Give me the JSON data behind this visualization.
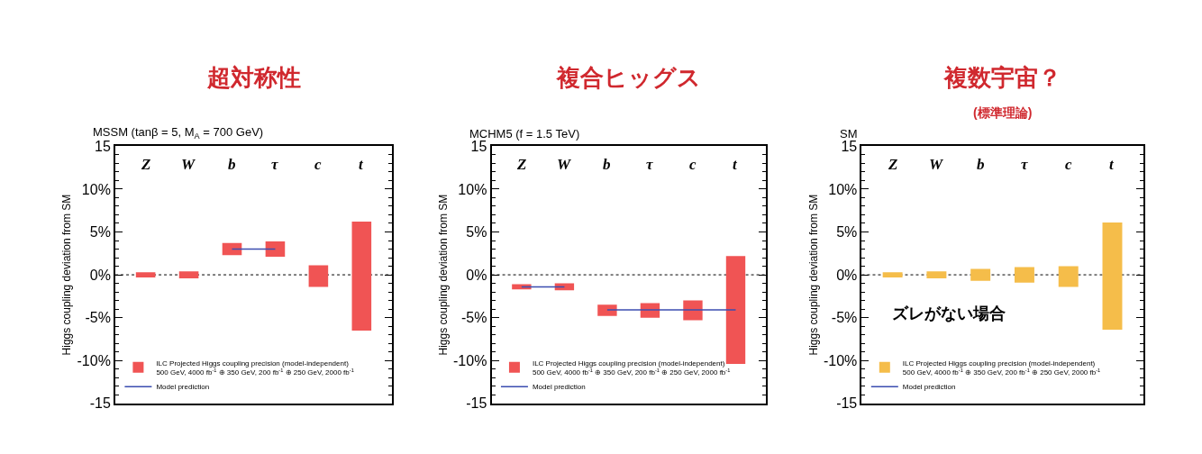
{
  "chart_data": [
    {
      "type": "bar",
      "title": "超対称性",
      "subtitle": "MSSM (tanβ = 5, M$_{A}$ = 700 GeV)",
      "ylabel": "Higgs coupling deviation from SM",
      "categories": [
        "Z",
        "W",
        "b",
        "τ",
        "c",
        "t"
      ],
      "series": [
        {
          "name": "ILC Projected Higgs coupling precision (model-independent)\n500 GeV, 4000 fb$^{-1}$ ⊕ 350 GeV, 200 fb$^{-1}$ ⊕ 250 GeV, 2000 fb$^{-1}$",
          "color": "#f05454",
          "base": [
            -0.3,
            -0.4,
            2.3,
            2.1,
            -1.4,
            -6.5
          ],
          "values": [
            0.6,
            0.8,
            1.4,
            1.8,
            2.5,
            12.7
          ]
        },
        {
          "type": "line",
          "name": "Model prediction",
          "color": "#3b4db0",
          "values": [
            null,
            null,
            3.0,
            3.0,
            null,
            null
          ]
        }
      ],
      "ylim": [
        -15,
        15
      ],
      "yticks": [
        15,
        {
          "value": 10,
          "label": "10%"
        },
        {
          "value": 5,
          "label": "5%"
        },
        {
          "value": 0,
          "label": "0%"
        },
        {
          "value": -5,
          "label": "-5%"
        },
        {
          "value": -10,
          "label": "-10%"
        },
        -15
      ],
      "ref_lines": [
        {
          "axis": "y",
          "value": 0,
          "color": "#000000",
          "line_style": "dotted"
        }
      ],
      "legend": "bottom left",
      "grid": false
    },
    {
      "type": "bar",
      "title": "複合ヒッグス",
      "subtitle": "MCHM5 (f = 1.5 TeV)",
      "ylabel": "Higgs coupling deviation from SM",
      "categories": [
        "Z",
        "W",
        "b",
        "τ",
        "c",
        "t"
      ],
      "series": [
        {
          "name": "ILC Projected Higgs coupling precision (model-independent)\n500 GeV, 4000 fb$^{-1}$ ⊕ 350 GeV, 200 fb$^{-1}$ ⊕ 250 GeV, 2000 fb$^{-1}$",
          "color": "#f05454",
          "base": [
            -1.7,
            -1.8,
            -4.8,
            -5.0,
            -5.3,
            -10.4
          ],
          "values": [
            0.6,
            0.8,
            1.3,
            1.7,
            2.3,
            12.6
          ]
        },
        {
          "type": "line",
          "name": "Model prediction",
          "color": "#3b4db0",
          "values": [
            -1.4,
            -1.4,
            null,
            null,
            null,
            null
          ]
        },
        {
          "type": "line",
          "color": "#3b4db0",
          "values": [
            null,
            null,
            -4.1,
            -4.1,
            -4.1,
            -4.1
          ]
        }
      ],
      "ylim": [
        -15,
        15
      ],
      "yticks": [
        15,
        {
          "value": 10,
          "label": "10%"
        },
        {
          "value": 5,
          "label": "5%"
        },
        {
          "value": 0,
          "label": "0%"
        },
        {
          "value": -5,
          "label": "-5%"
        },
        {
          "value": -10,
          "label": "-10%"
        },
        -15
      ],
      "ref_lines": [
        {
          "axis": "y",
          "value": 0,
          "color": "#000000",
          "line_style": "dotted"
        }
      ],
      "legend": "bottom left",
      "grid": false
    },
    {
      "type": "bar",
      "title": "複数宇宙？\n(標準理論)",
      "subtitle": "SM",
      "ylabel": "Higgs coupling deviation from SM",
      "annotations": [
        "ズレがない場合"
      ],
      "categories": [
        "Z",
        "W",
        "b",
        "τ",
        "c",
        "t"
      ],
      "series": [
        {
          "name": "ILC Projected Higgs coupling precision (model-independent)\n500 GeV, 4000 fb$^{-1}$ ⊕ 350 GeV, 200 fb$^{-1}$ ⊕ 250 GeV, 2000 fb$^{-1}$",
          "color": "#f5bd4a",
          "base": [
            -0.3,
            -0.4,
            -0.7,
            -0.9,
            -1.4,
            -6.4
          ],
          "values": [
            0.6,
            0.8,
            1.4,
            1.8,
            2.4,
            12.5
          ]
        },
        {
          "type": "line",
          "name": "Model prediction",
          "color": "#3b4db0",
          "values": [
            null,
            null,
            null,
            null,
            null,
            null
          ]
        }
      ],
      "ylim": [
        -15,
        15
      ],
      "yticks": [
        15,
        {
          "value": 10,
          "label": "10%"
        },
        {
          "value": 5,
          "label": "5%"
        },
        {
          "value": 0,
          "label": "0%"
        },
        {
          "value": -5,
          "label": "-5%"
        },
        {
          "value": -10,
          "label": "-10%"
        },
        -15
      ],
      "ref_lines": [
        {
          "axis": "y",
          "value": 0,
          "color": "#000000",
          "line_style": "dotted"
        }
      ],
      "legend": "bottom left",
      "grid": false
    }
  ]
}
